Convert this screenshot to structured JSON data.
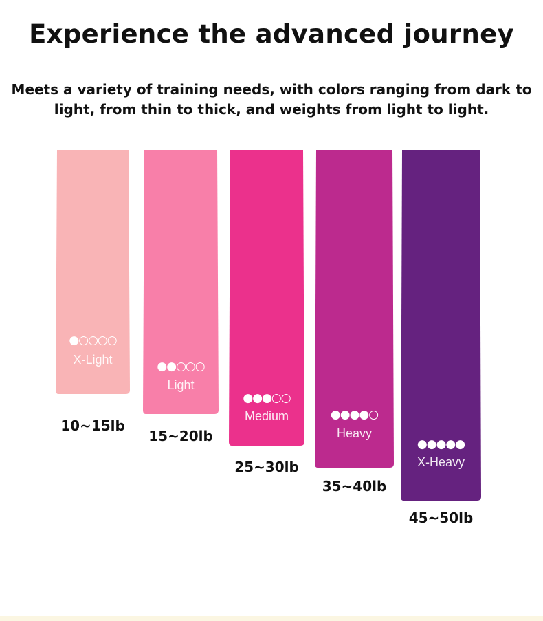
{
  "header": {
    "title": "Experience the advanced journey",
    "subtitle_lines": [
      "Meets a variety of training needs, with colors ranging from dark to",
      "light, from thin to thick, and weights from light to light."
    ]
  },
  "bands": [
    {
      "rating": "●○○○○",
      "label": "X-Light",
      "weight": "10~15lb"
    },
    {
      "rating": "●●○○○",
      "label": "Light",
      "weight": "15~20lb"
    },
    {
      "rating": "●●●○○",
      "label": "Medium",
      "weight": "25~30lb"
    },
    {
      "rating": "●●●●○",
      "label": "Heavy",
      "weight": "35~40lb"
    },
    {
      "rating": "●●●●●",
      "label": "X-Heavy",
      "weight": "45~50lb"
    }
  ]
}
